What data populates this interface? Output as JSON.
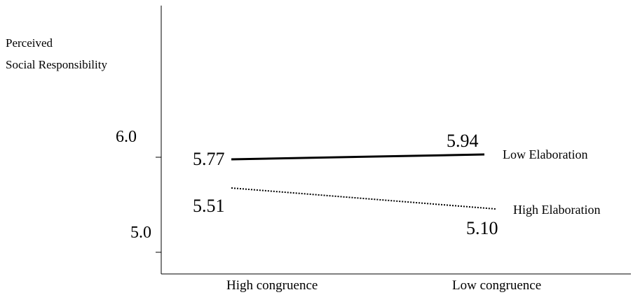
{
  "chart_data": {
    "type": "line",
    "ylabel_lines": [
      "Perceived",
      "Social Responsibility"
    ],
    "xlabel": "",
    "categories": [
      "High congruence",
      "Low congruence"
    ],
    "yticks": [
      "6.0",
      "5.0"
    ],
    "series": [
      {
        "name": "Low Elaboration",
        "values": [
          5.77,
          5.94
        ],
        "value_labels": [
          "5.77",
          "5.94"
        ],
        "style": "solid"
      },
      {
        "name": "High Elaboration",
        "values": [
          5.51,
          5.1
        ],
        "value_labels": [
          "5.51",
          "5.10"
        ],
        "style": "dotted"
      }
    ],
    "grid": false,
    "legend": "inline-right",
    "line_color": "#000000"
  }
}
